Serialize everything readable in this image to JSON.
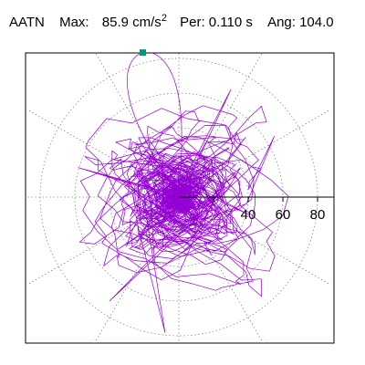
{
  "header": {
    "station": "AATN",
    "max_label": "Max:",
    "max_value": "85.9",
    "max_unit": "cm/s",
    "max_exp": "2",
    "per_label": "Per:",
    "per_value": "0.110 s",
    "ang_label": "Ang:",
    "ang_value": "104.0"
  },
  "chart_data": {
    "type": "polar_particle_motion",
    "title": "",
    "xlabel": "",
    "ylabel": "",
    "radial_ticks": [
      "20",
      "40",
      "60",
      "80"
    ],
    "radial_tick_values": [
      20,
      40,
      60,
      80
    ],
    "shown_tick_labels": [
      "40",
      "60",
      "80"
    ],
    "r_max": 95,
    "grid": true,
    "grid_rings": [
      20,
      40,
      60,
      80
    ],
    "spoke_angles_deg": [
      0,
      30,
      60,
      90,
      120,
      150,
      180,
      210,
      240,
      270,
      300,
      330
    ],
    "max_amplitude": 85.9,
    "period_s": 0.11,
    "angle_deg": 104.0,
    "trace_color": "#9400d3",
    "marker_color": "#009977"
  }
}
